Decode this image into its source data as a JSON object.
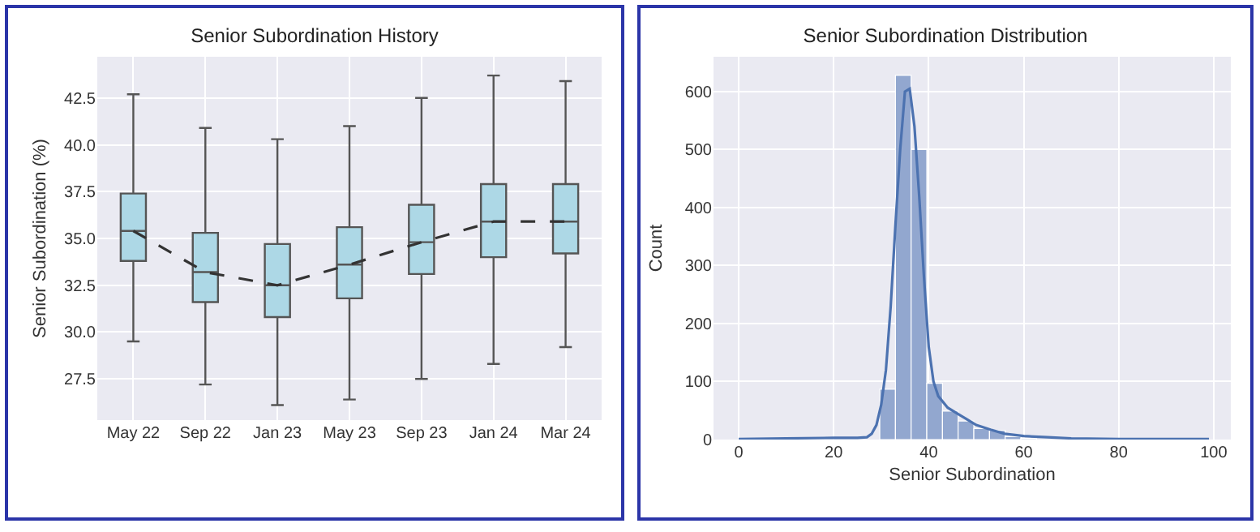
{
  "chart_data": [
    {
      "type": "box",
      "title": "Senior Subordination History",
      "ylabel": "Senior Subordination (%)",
      "categories": [
        "May 22",
        "Sep 22",
        "Jan 23",
        "May 23",
        "Sep 23",
        "Jan 24",
        "Mar 24"
      ],
      "series": [
        {
          "type": "box",
          "color": "#add8e6",
          "boxes": [
            {
              "low": 29.5,
              "q1": 33.8,
              "median": 35.4,
              "q3": 37.4,
              "high": 42.7
            },
            {
              "low": 27.2,
              "q1": 31.6,
              "median": 33.2,
              "q3": 35.3,
              "high": 40.9
            },
            {
              "low": 26.1,
              "q1": 30.8,
              "median": 32.5,
              "q3": 34.7,
              "high": 40.3
            },
            {
              "low": 26.4,
              "q1": 31.8,
              "median": 33.6,
              "q3": 35.6,
              "high": 41.0
            },
            {
              "low": 27.5,
              "q1": 33.1,
              "median": 34.8,
              "q3": 36.8,
              "high": 42.5
            },
            {
              "low": 28.3,
              "q1": 34.0,
              "median": 35.9,
              "q3": 37.9,
              "high": 43.7
            },
            {
              "low": 29.2,
              "q1": 34.2,
              "median": 35.9,
              "q3": 37.9,
              "high": 43.4
            }
          ]
        },
        {
          "type": "line",
          "color": "#333333",
          "line_style": "dashed",
          "values": [
            35.4,
            33.2,
            32.5,
            33.6,
            34.8,
            35.9,
            35.9
          ]
        }
      ],
      "ylim": [
        25.3,
        44.7
      ],
      "yticks": [
        27.5,
        {
          "value": 30,
          "label": "30.0"
        },
        32.5,
        {
          "value": 35,
          "label": "35.0"
        },
        37.5,
        {
          "value": 40,
          "label": "40.0"
        },
        42.5
      ],
      "grid": true,
      "marker": "none"
    },
    {
      "type": "histogram",
      "title": "Senior Subordination Distribution",
      "xlabel": "Senior Subordination",
      "ylabel": "Count",
      "bins": [
        0,
        3.3,
        6.6,
        9.9,
        13.2,
        16.5,
        19.8,
        23.1,
        26.4,
        29.7,
        33,
        36.3,
        39.6,
        42.9,
        46.2,
        49.5,
        52.8,
        56.1,
        59.4,
        62.7,
        66,
        69.3,
        72.6,
        75.9,
        79.2,
        82.5,
        85.8,
        89.1,
        92.4,
        95.7,
        99
      ],
      "values": [
        0,
        0,
        0,
        0,
        0,
        0,
        0,
        0,
        0,
        87,
        628,
        500,
        97,
        49,
        32,
        19,
        16,
        5,
        2,
        0,
        0,
        0,
        0,
        0,
        0,
        0,
        0,
        0,
        0,
        0
      ],
      "color": "#92a7cf",
      "series": [
        {
          "type": "line",
          "color": "#4c72b0",
          "x": [
            0,
            10,
            20,
            25,
            27,
            28,
            29,
            30,
            31,
            32,
            33,
            34,
            35,
            36,
            37,
            38,
            39,
            40,
            41,
            42,
            44,
            46,
            48,
            50,
            53,
            56,
            60,
            65,
            70,
            80,
            90,
            99
          ],
          "values": [
            1,
            2,
            3,
            3,
            4,
            10,
            25,
            60,
            120,
            230,
            370,
            500,
            600,
            605,
            540,
            420,
            280,
            160,
            100,
            75,
            55,
            45,
            35,
            25,
            17,
            10,
            6,
            4,
            2,
            1,
            1,
            1
          ]
        }
      ],
      "xlim": [
        -5.3,
        103.6
      ],
      "xticks": [
        0,
        20,
        40,
        60,
        80,
        100
      ],
      "ylim": [
        0,
        660
      ],
      "yticks": [
        0,
        100,
        200,
        300,
        400,
        500,
        600
      ],
      "grid": true,
      "marker": "none"
    }
  ]
}
